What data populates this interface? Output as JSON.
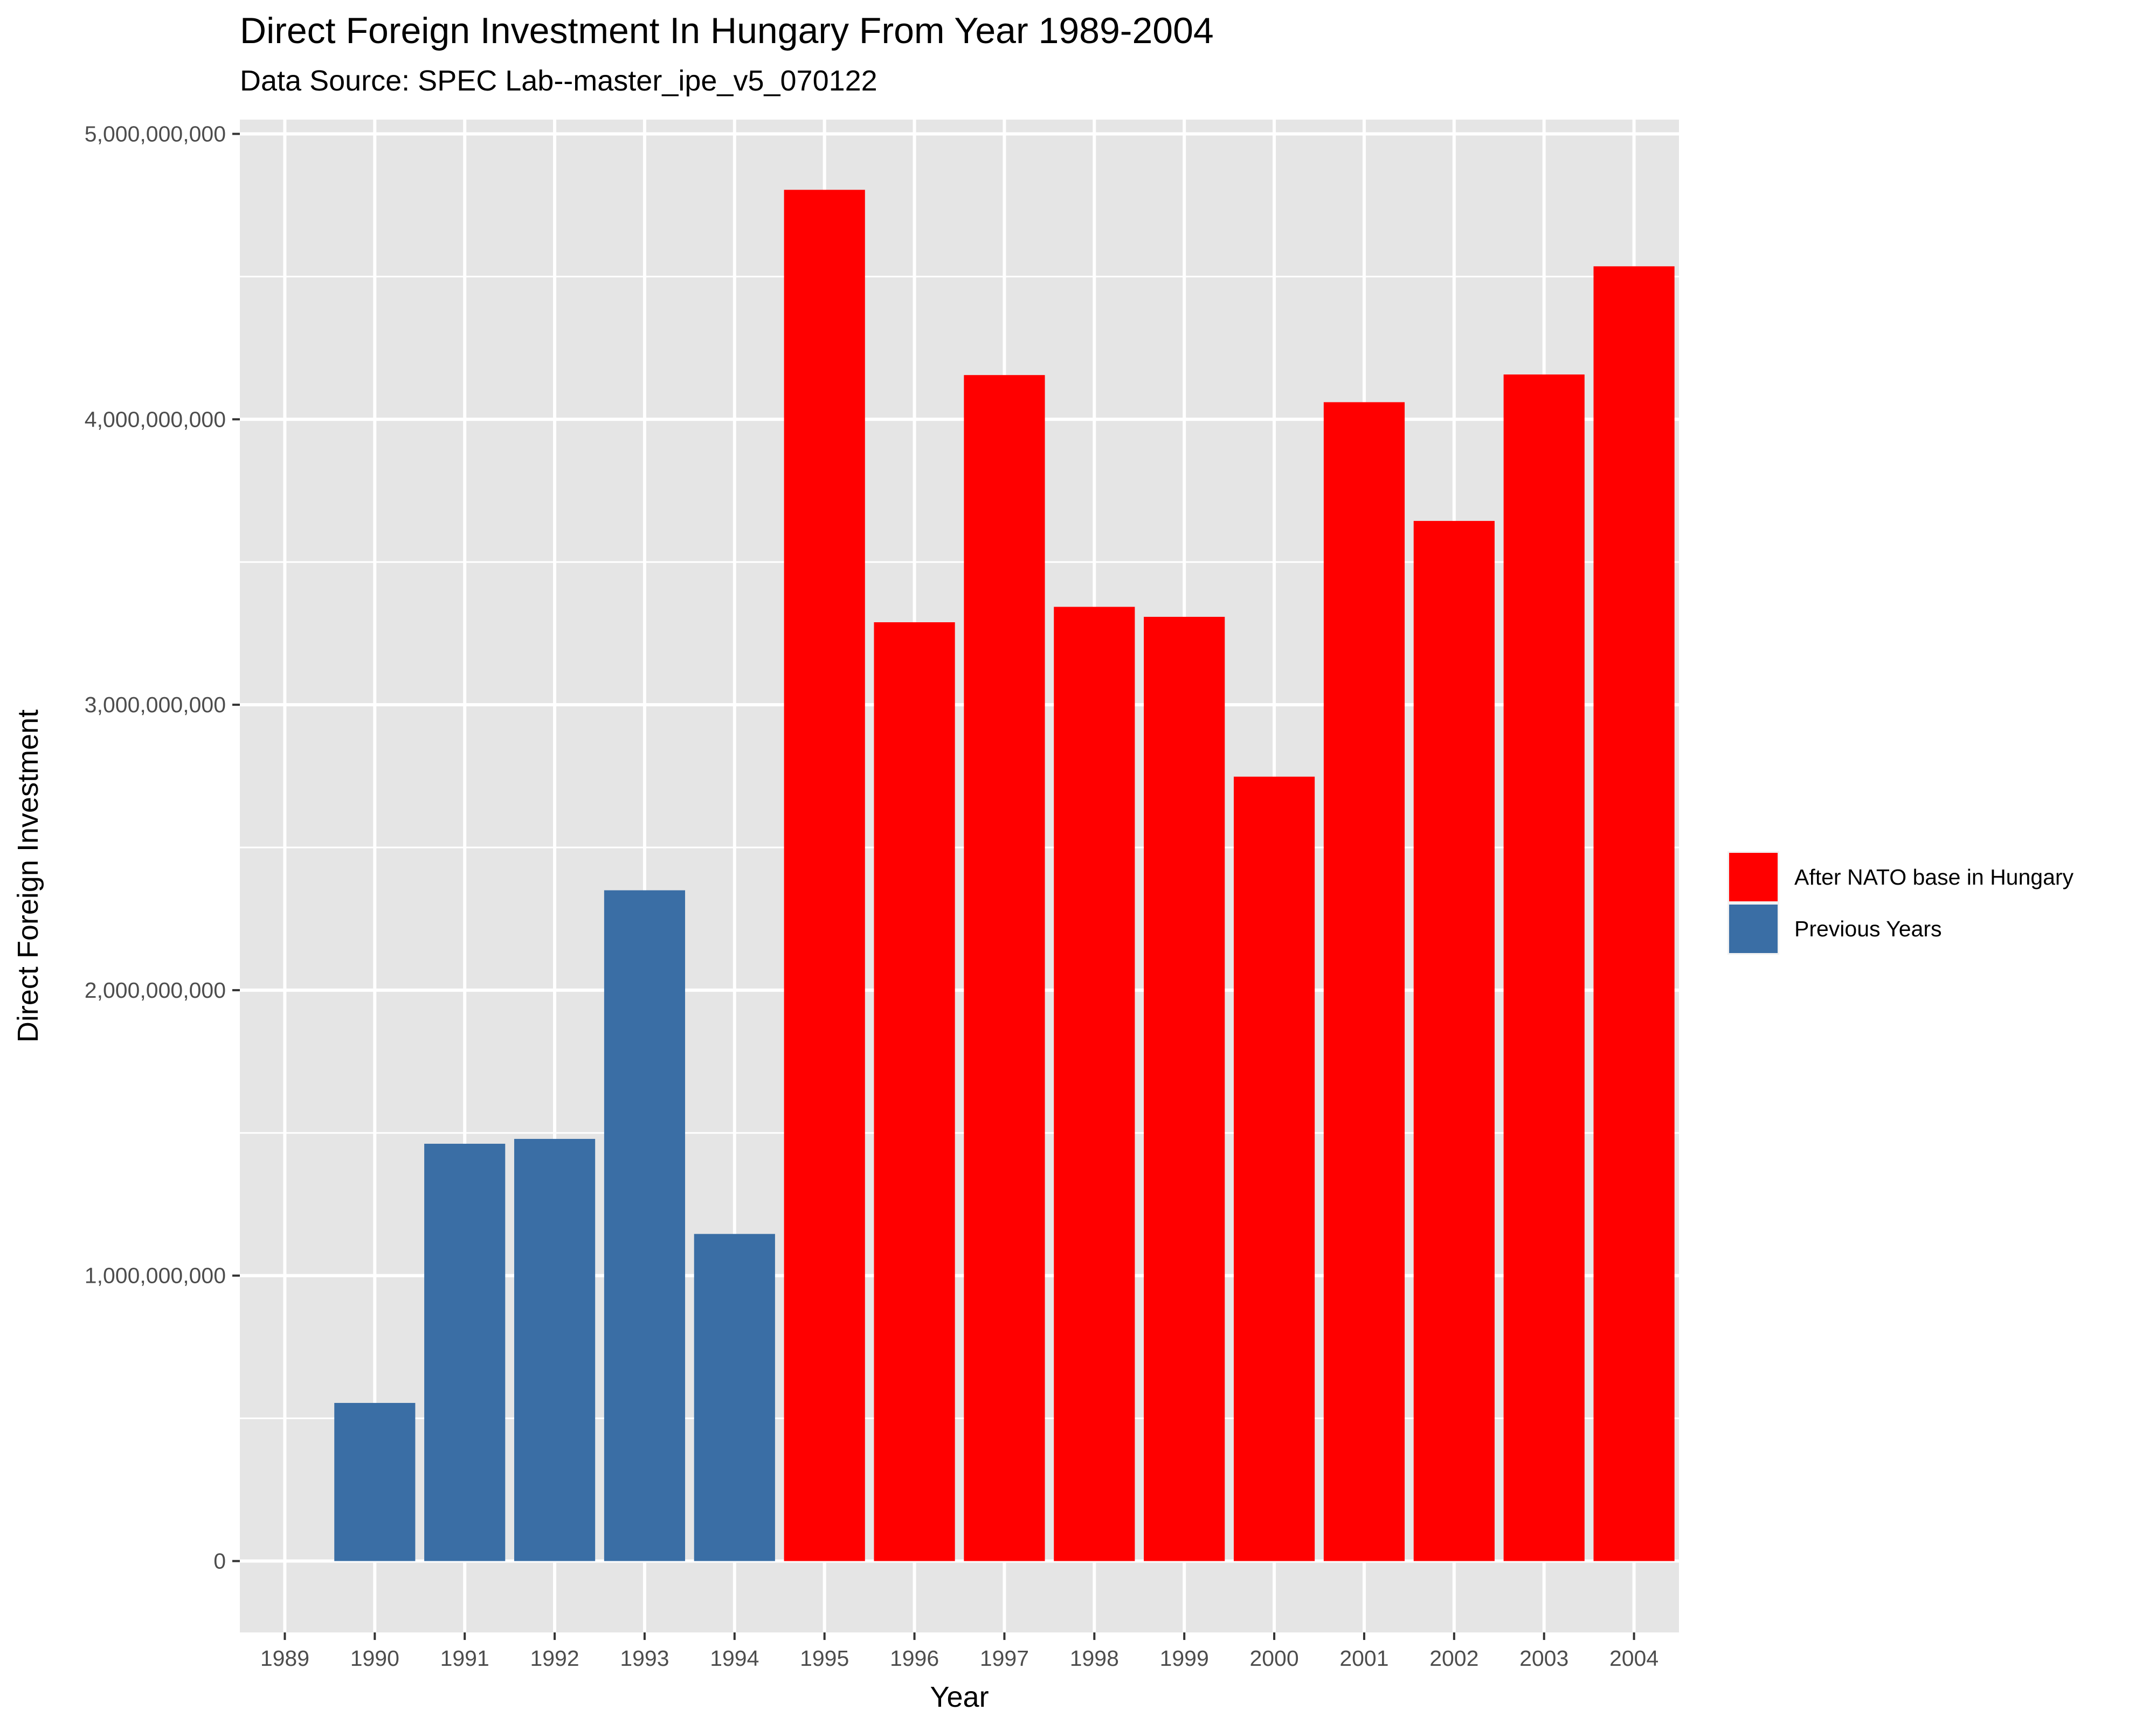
{
  "chart_data": {
    "type": "bar",
    "title": "Direct Foreign Investment In Hungary From Year 1989-2004",
    "subtitle": "Data Source: SPEC Lab--master_ipe_v5_070122",
    "xlabel": "Year",
    "ylabel": "Direct Foreign Investment",
    "categories": [
      "1989",
      "1990",
      "1991",
      "1992",
      "1993",
      "1994",
      "1995",
      "1996",
      "1997",
      "1998",
      "1999",
      "2000",
      "2001",
      "2002",
      "2003",
      "2004"
    ],
    "values": [
      0,
      554000000,
      1462000000,
      1479000000,
      2350000000,
      1146000000,
      4804000000,
      3289000000,
      4155000000,
      3343000000,
      3308000000,
      2748000000,
      4060000000,
      3644000000,
      4157000000,
      4536000000
    ],
    "groups": [
      "Previous Years",
      "Previous Years",
      "Previous Years",
      "Previous Years",
      "Previous Years",
      "Previous Years",
      "After NATO base in Hungary",
      "After NATO base in Hungary",
      "After NATO base in Hungary",
      "After NATO base in Hungary",
      "After NATO base in Hungary",
      "After NATO base in Hungary",
      "After NATO base in Hungary",
      "After NATO base in Hungary",
      "After NATO base in Hungary",
      "After NATO base in Hungary"
    ],
    "ylim": [
      -250000000,
      5050000000
    ],
    "y_ticks": [
      0,
      1000000000,
      2000000000,
      3000000000,
      4000000000,
      5000000000
    ],
    "y_tick_labels": [
      "0",
      "1,000,000,000",
      "2,000,000,000",
      "3,000,000,000",
      "4,000,000,000",
      "5,000,000,000"
    ],
    "grid": true,
    "legend": {
      "position": "right",
      "entries": [
        {
          "label": "After NATO base in Hungary",
          "color": "#ff0000"
        },
        {
          "label": "Previous Years",
          "color": "#3a6ea5"
        }
      ]
    },
    "colors": {
      "After NATO base in Hungary": "#ff0000",
      "Previous Years": "#3a6ea5",
      "panel": "#e5e5e5",
      "grid": "#ffffff"
    }
  }
}
